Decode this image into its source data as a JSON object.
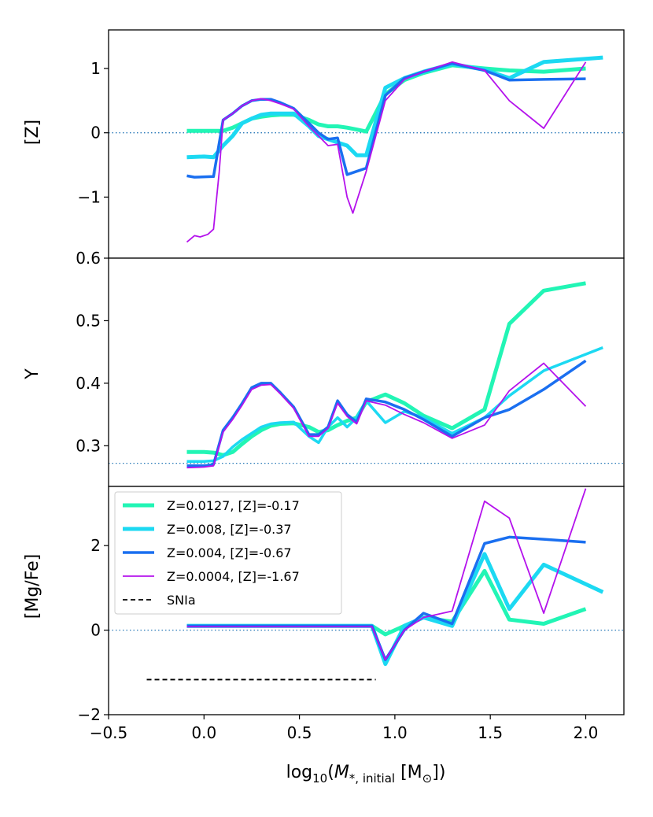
{
  "chart_data": {
    "type": "line",
    "xlabel": {
      "prefix": "log",
      "sub": "10",
      "open": "(",
      "var": "M",
      "varsub": "*, initial",
      "unit": " [M",
      "unitsub": "⊙",
      "close": "])"
    },
    "xlim": [
      -0.5,
      2.2
    ],
    "xticks": [
      -0.5,
      0.0,
      0.5,
      1.0,
      1.5,
      2.0
    ],
    "xtick_labels": [
      "−0.5",
      "0.0",
      "0.5",
      "1.0",
      "1.5",
      "2.0"
    ],
    "legend": {
      "placement": "upper-left of bottom panel",
      "entries": [
        {
          "label": "Z=0.0127, [Z]=-0.17",
          "color": "#22f5b5"
        },
        {
          "label": "Z=0.008, [Z]=-0.37",
          "color": "#1cd9f2"
        },
        {
          "label": "Z=0.004, [Z]=-0.67",
          "color": "#1a6ff0"
        },
        {
          "label": "Z=0.0004, [Z]=-1.67",
          "color": "#b412ec"
        },
        {
          "label": "SNIa",
          "color": "#000000",
          "dashed": true
        }
      ]
    },
    "panels": [
      {
        "name": "Z",
        "ylabel": "[Z]",
        "ylim": [
          -1.95,
          1.6
        ],
        "yticks": [
          -1,
          0,
          1
        ],
        "ytick_labels": [
          "−1",
          "0",
          "1"
        ],
        "reference_line": 0,
        "series": [
          {
            "name": "Z=0.0127, [Z]=-0.17",
            "color": "#22f5b5",
            "width": 5,
            "x": [
              -0.09,
              0.05,
              0.1,
              0.15,
              0.2,
              0.25,
              0.3,
              0.35,
              0.4,
              0.47,
              0.55,
              0.6,
              0.65,
              0.7,
              0.75,
              0.8,
              0.85,
              0.95,
              1.05,
              1.15,
              1.3,
              1.47,
              1.6,
              1.78,
              2.0
            ],
            "y": [
              0.03,
              0.03,
              0.03,
              0.08,
              0.15,
              0.22,
              0.25,
              0.27,
              0.28,
              0.28,
              0.2,
              0.13,
              0.1,
              0.1,
              0.08,
              0.05,
              0.02,
              0.6,
              0.82,
              0.93,
              1.05,
              1.0,
              0.97,
              0.95,
              1.0
            ]
          },
          {
            "name": "Z=0.008, [Z]=-0.37",
            "color": "#1cd9f2",
            "width": 5,
            "x": [
              -0.09,
              0.0,
              0.05,
              0.1,
              0.15,
              0.2,
              0.25,
              0.3,
              0.35,
              0.4,
              0.47,
              0.55,
              0.6,
              0.65,
              0.7,
              0.75,
              0.8,
              0.85,
              0.95,
              1.05,
              1.15,
              1.3,
              1.47,
              1.6,
              1.78,
              2.09
            ],
            "y": [
              -0.38,
              -0.37,
              -0.38,
              -0.2,
              -0.05,
              0.15,
              0.22,
              0.28,
              0.3,
              0.3,
              0.3,
              0.1,
              -0.05,
              -0.1,
              -0.15,
              -0.2,
              -0.35,
              -0.35,
              0.7,
              0.85,
              0.95,
              1.07,
              0.98,
              0.85,
              1.1,
              1.17
            ]
          },
          {
            "name": "Z=0.004, [Z]=-0.67",
            "color": "#1a6ff0",
            "width": 3.5,
            "x": [
              -0.09,
              -0.05,
              0.05,
              0.1,
              0.15,
              0.2,
              0.25,
              0.3,
              0.35,
              0.4,
              0.47,
              0.55,
              0.6,
              0.65,
              0.7,
              0.75,
              0.8,
              0.85,
              0.95,
              1.05,
              1.15,
              1.3,
              1.47,
              1.6,
              1.78,
              2.0
            ],
            "y": [
              -0.67,
              -0.69,
              -0.68,
              0.2,
              0.3,
              0.42,
              0.5,
              0.52,
              0.52,
              0.47,
              0.38,
              0.15,
              0.0,
              -0.1,
              -0.08,
              -0.65,
              -0.6,
              -0.55,
              0.58,
              0.85,
              0.95,
              1.08,
              0.97,
              0.82,
              0.83,
              0.84
            ]
          },
          {
            "name": "Z=0.0004, [Z]=-1.67",
            "color": "#b412ec",
            "width": 1.8,
            "x": [
              -0.09,
              -0.05,
              -0.02,
              0.02,
              0.05,
              0.08,
              0.1,
              0.15,
              0.2,
              0.25,
              0.3,
              0.35,
              0.4,
              0.47,
              0.55,
              0.6,
              0.65,
              0.7,
              0.75,
              0.78,
              0.85,
              0.95,
              1.05,
              1.15,
              1.3,
              1.47,
              1.6,
              1.78,
              2.0
            ],
            "y": [
              -1.7,
              -1.6,
              -1.62,
              -1.58,
              -1.5,
              -0.6,
              0.2,
              0.3,
              0.42,
              0.5,
              0.53,
              0.5,
              0.45,
              0.37,
              0.1,
              -0.05,
              -0.2,
              -0.18,
              -1.0,
              -1.25,
              -0.6,
              0.5,
              0.83,
              0.95,
              1.1,
              0.97,
              0.5,
              0.07,
              1.1
            ]
          }
        ]
      },
      {
        "name": "Y",
        "ylabel": "Y",
        "ylim": [
          0.235,
          0.6
        ],
        "yticks": [
          0.3,
          0.4,
          0.5,
          0.6
        ],
        "ytick_labels": [
          "0.3",
          "0.4",
          "0.5",
          "0.6"
        ],
        "reference_line": 0.272,
        "series": [
          {
            "name": "Z=0.0127, [Z]=-0.17",
            "color": "#22f5b5",
            "width": 5,
            "x": [
              -0.09,
              0.0,
              0.05,
              0.1,
              0.15,
              0.2,
              0.25,
              0.3,
              0.35,
              0.4,
              0.47,
              0.55,
              0.6,
              0.65,
              0.7,
              0.75,
              0.8,
              0.85,
              0.95,
              1.05,
              1.15,
              1.3,
              1.47,
              1.6,
              1.78,
              2.0
            ],
            "y": [
              0.29,
              0.29,
              0.289,
              0.285,
              0.29,
              0.303,
              0.315,
              0.325,
              0.332,
              0.335,
              0.336,
              0.33,
              0.322,
              0.325,
              0.333,
              0.34,
              0.345,
              0.37,
              0.382,
              0.368,
              0.348,
              0.328,
              0.358,
              0.495,
              0.548,
              0.56
            ]
          },
          {
            "name": "Z=0.008, [Z]=-0.37",
            "color": "#1cd9f2",
            "width": 3.5,
            "x": [
              -0.09,
              0.0,
              0.05,
              0.1,
              0.15,
              0.2,
              0.25,
              0.3,
              0.35,
              0.4,
              0.47,
              0.55,
              0.6,
              0.65,
              0.7,
              0.75,
              0.8,
              0.85,
              0.95,
              1.05,
              1.15,
              1.3,
              1.47,
              1.6,
              1.78,
              2.09
            ],
            "y": [
              0.275,
              0.275,
              0.276,
              0.283,
              0.298,
              0.31,
              0.32,
              0.33,
              0.335,
              0.337,
              0.338,
              0.315,
              0.305,
              0.33,
              0.345,
              0.33,
              0.345,
              0.372,
              0.337,
              0.355,
              0.345,
              0.32,
              0.345,
              0.38,
              0.42,
              0.457
            ]
          },
          {
            "name": "Z=0.004, [Z]=-0.67",
            "color": "#1a6ff0",
            "width": 3.5,
            "x": [
              -0.09,
              0.0,
              0.05,
              0.1,
              0.15,
              0.2,
              0.25,
              0.3,
              0.35,
              0.4,
              0.47,
              0.55,
              0.6,
              0.65,
              0.7,
              0.75,
              0.8,
              0.85,
              0.95,
              1.05,
              1.15,
              1.3,
              1.47,
              1.6,
              1.78,
              2.0
            ],
            "y": [
              0.268,
              0.268,
              0.27,
              0.325,
              0.345,
              0.368,
              0.393,
              0.4,
              0.4,
              0.385,
              0.362,
              0.318,
              0.318,
              0.33,
              0.372,
              0.35,
              0.338,
              0.375,
              0.37,
              0.358,
              0.342,
              0.315,
              0.345,
              0.358,
              0.39,
              0.436
            ]
          },
          {
            "name": "Z=0.0004, [Z]=-1.67",
            "color": "#b412ec",
            "width": 1.8,
            "x": [
              -0.09,
              0.0,
              0.05,
              0.1,
              0.15,
              0.2,
              0.25,
              0.3,
              0.35,
              0.4,
              0.47,
              0.55,
              0.6,
              0.65,
              0.7,
              0.75,
              0.8,
              0.85,
              0.95,
              1.05,
              1.15,
              1.3,
              1.47,
              1.6,
              1.78,
              2.0
            ],
            "y": [
              0.265,
              0.266,
              0.268,
              0.322,
              0.342,
              0.365,
              0.39,
              0.397,
              0.398,
              0.383,
              0.36,
              0.315,
              0.315,
              0.328,
              0.368,
              0.347,
              0.335,
              0.372,
              0.365,
              0.35,
              0.337,
              0.312,
              0.333,
              0.388,
              0.432,
              0.363
            ]
          }
        ]
      },
      {
        "name": "MgFe",
        "ylabel": "[Mg/Fe]",
        "ylim": [
          -2.0,
          3.4
        ],
        "yticks": [
          -2,
          0,
          2
        ],
        "ytick_labels": [
          "−2",
          "0",
          "2"
        ],
        "reference_line": 0,
        "snia": {
          "x": [
            -0.3,
            0.9
          ],
          "y": -1.17
        },
        "series": [
          {
            "name": "Z=0.0127, [Z]=-0.17",
            "color": "#22f5b5",
            "width": 5,
            "x": [
              -0.09,
              0.0,
              0.2,
              0.4,
              0.6,
              0.8,
              0.88,
              0.95,
              1.05,
              1.15,
              1.3,
              1.47,
              1.6,
              1.78,
              2.0
            ],
            "y": [
              0.1,
              0.1,
              0.1,
              0.1,
              0.1,
              0.1,
              0.1,
              -0.1,
              0.1,
              0.3,
              0.2,
              1.4,
              0.25,
              0.15,
              0.5
            ]
          },
          {
            "name": "Z=0.008, [Z]=-0.37",
            "color": "#1cd9f2",
            "width": 5,
            "x": [
              -0.09,
              0.0,
              0.2,
              0.4,
              0.6,
              0.8,
              0.88,
              0.95,
              1.05,
              1.15,
              1.3,
              1.47,
              1.6,
              1.78,
              2.09
            ],
            "y": [
              0.1,
              0.1,
              0.1,
              0.1,
              0.1,
              0.1,
              0.1,
              -0.8,
              0.1,
              0.3,
              0.1,
              1.8,
              0.5,
              1.55,
              0.9
            ]
          },
          {
            "name": "Z=0.004, [Z]=-0.67",
            "color": "#1a6ff0",
            "width": 3.5,
            "x": [
              -0.09,
              0.0,
              0.2,
              0.4,
              0.6,
              0.8,
              0.88,
              0.95,
              1.05,
              1.15,
              1.3,
              1.47,
              1.6,
              1.78,
              2.0
            ],
            "y": [
              0.1,
              0.1,
              0.1,
              0.1,
              0.1,
              0.1,
              0.1,
              -0.7,
              0.0,
              0.4,
              0.15,
              2.05,
              2.2,
              2.15,
              2.08
            ]
          },
          {
            "name": "Z=0.0004, [Z]=-1.67",
            "color": "#b412ec",
            "width": 1.8,
            "x": [
              -0.09,
              0.0,
              0.2,
              0.4,
              0.6,
              0.8,
              0.88,
              0.95,
              1.05,
              1.15,
              1.3,
              1.47,
              1.6,
              1.78,
              2.0
            ],
            "y": [
              0.08,
              0.08,
              0.08,
              0.08,
              0.08,
              0.08,
              0.08,
              -0.7,
              0.0,
              0.3,
              0.45,
              3.05,
              2.65,
              0.4,
              3.35
            ]
          }
        ]
      }
    ]
  }
}
